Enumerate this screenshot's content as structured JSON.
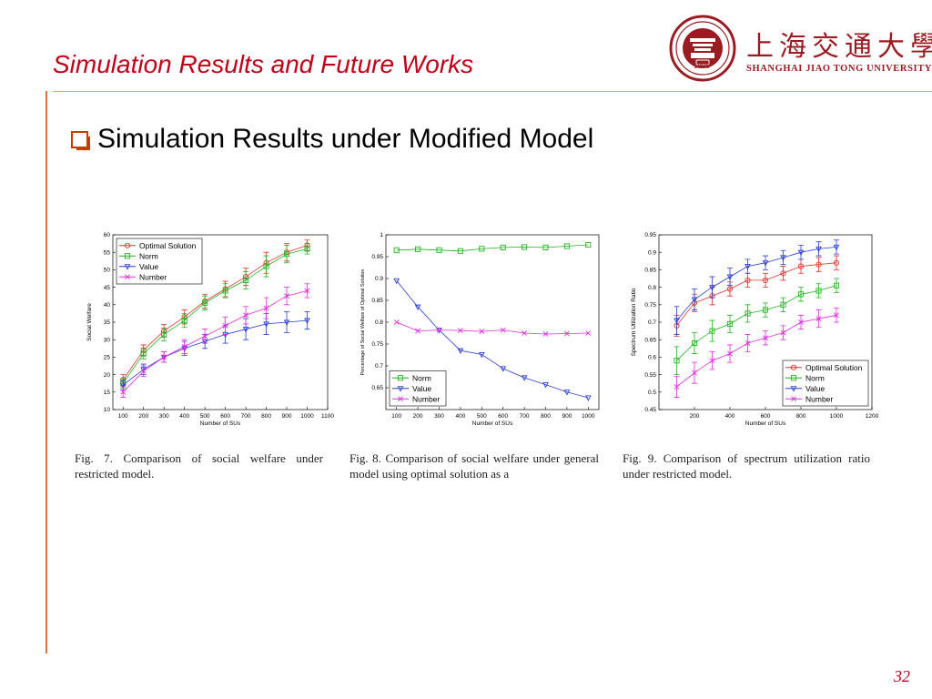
{
  "slide": {
    "title": "Simulation Results and Future Works",
    "bullet": "Simulation Results under Modified Model",
    "page_number": "32"
  },
  "logo": {
    "chinese": "上海交通大學",
    "english": "Shanghai Jiao Tong University",
    "year": "1896"
  },
  "captions": {
    "fig7": "Fig. 7.    Comparison of social welfare under restricted model.",
    "fig8": "Fig. 8.    Comparison of social welfare under general model using optimal solution as a",
    "fig9": "Fig. 9.    Comparison of spectrum utilization ratio under restricted model."
  },
  "colors": {
    "title": "#c0001a",
    "red": "#e0302a",
    "green": "#1fb51f",
    "blue": "#2a3fd6",
    "magenta": "#e02ce0"
  },
  "chart_data": [
    {
      "id": "fig7",
      "type": "line",
      "xlabel": "Number of SUs",
      "ylabel": "Social Welfare",
      "xlim": [
        50,
        1100
      ],
      "ylim": [
        10,
        60
      ],
      "xticks": [
        100,
        200,
        300,
        400,
        500,
        600,
        700,
        800,
        900,
        1000,
        1100
      ],
      "yticks": [
        10,
        15,
        20,
        25,
        30,
        35,
        40,
        45,
        50,
        55,
        60
      ],
      "legend": "top-left",
      "x": [
        100,
        200,
        300,
        400,
        500,
        600,
        700,
        800,
        900,
        1000
      ],
      "series": [
        {
          "name": "Optimal Solution",
          "color": "#e0302a",
          "marker": "circle",
          "values": [
            18.5,
            27,
            32.5,
            36.5,
            41,
            44.5,
            48,
            52,
            55,
            57
          ],
          "err": [
            1.5,
            1.5,
            1.8,
            2,
            2,
            2.2,
            2.5,
            3,
            2.5,
            1.5
          ]
        },
        {
          "name": "Norm",
          "color": "#1fb51f",
          "marker": "square",
          "values": [
            17.5,
            26,
            31.5,
            35.5,
            40.5,
            44,
            47,
            51,
            54.5,
            56
          ],
          "err": [
            1.5,
            1.5,
            1.8,
            2,
            2,
            2,
            2.5,
            3,
            2.5,
            1.5
          ]
        },
        {
          "name": "Value",
          "color": "#2a3fd6",
          "marker": "triangle-down",
          "values": [
            17,
            21.5,
            25,
            27.5,
            29.5,
            31.5,
            33,
            34.5,
            35,
            35.5
          ],
          "err": [
            1.5,
            1.5,
            1.5,
            2,
            2,
            2.5,
            3,
            3,
            3,
            2.5
          ]
        },
        {
          "name": "Number",
          "color": "#e02ce0",
          "marker": "x",
          "values": [
            15,
            21,
            25,
            28,
            31,
            34,
            37,
            39,
            42.5,
            44
          ],
          "err": [
            1.5,
            1.5,
            1.5,
            2,
            2,
            2.5,
            2.5,
            3,
            2.5,
            2
          ]
        }
      ]
    },
    {
      "id": "fig8",
      "type": "line",
      "xlabel": "Number of SUs",
      "ylabel": "Percentage of Social Welfare of Optimal Solution",
      "xlim": [
        50,
        1050
      ],
      "ylim": [
        0.6,
        1.0
      ],
      "xticks": [
        100,
        200,
        300,
        400,
        500,
        600,
        700,
        800,
        900,
        1000
      ],
      "yticks": [
        0.65,
        0.7,
        0.75,
        0.8,
        0.85,
        0.9,
        0.95,
        1
      ],
      "legend": "bottom-left",
      "x": [
        100,
        200,
        300,
        400,
        500,
        600,
        700,
        800,
        900,
        1000
      ],
      "series": [
        {
          "name": "Norm",
          "color": "#1fb51f",
          "marker": "square",
          "values": [
            0.965,
            0.967,
            0.965,
            0.963,
            0.968,
            0.971,
            0.972,
            0.971,
            0.974,
            0.977
          ]
        },
        {
          "name": "Value",
          "color": "#2a3fd6",
          "marker": "triangle-down",
          "values": [
            0.895,
            0.835,
            0.782,
            0.735,
            0.726,
            0.694,
            0.673,
            0.657,
            0.64,
            0.627
          ]
        },
        {
          "name": "Number",
          "color": "#e02ce0",
          "marker": "x",
          "values": [
            0.8,
            0.78,
            0.782,
            0.781,
            0.779,
            0.782,
            0.775,
            0.773,
            0.774,
            0.775
          ]
        }
      ]
    },
    {
      "id": "fig9",
      "type": "line",
      "xlabel": "Number of SUs",
      "ylabel": "Spectrum Utilization Ratio",
      "xlim": [
        0,
        1200
      ],
      "ylim": [
        0.45,
        0.95
      ],
      "xticks": [
        200,
        400,
        600,
        800,
        1000,
        1200
      ],
      "yticks": [
        0.45,
        0.5,
        0.55,
        0.6,
        0.65,
        0.7,
        0.75,
        0.8,
        0.85,
        0.9,
        0.95
      ],
      "legend": "bottom-right",
      "x": [
        100,
        200,
        300,
        400,
        500,
        600,
        700,
        800,
        900,
        1000
      ],
      "series": [
        {
          "name": "Optimal Solution",
          "color": "#e0302a",
          "marker": "circle",
          "values": [
            0.69,
            0.755,
            0.775,
            0.795,
            0.82,
            0.82,
            0.84,
            0.86,
            0.865,
            0.87
          ],
          "err": [
            0.03,
            0.025,
            0.025,
            0.02,
            0.02,
            0.02,
            0.02,
            0.02,
            0.02,
            0.02
          ]
        },
        {
          "name": "Norm",
          "color": "#1fb51f",
          "marker": "square",
          "values": [
            0.59,
            0.64,
            0.675,
            0.695,
            0.725,
            0.735,
            0.75,
            0.78,
            0.79,
            0.805
          ],
          "err": [
            0.04,
            0.03,
            0.03,
            0.025,
            0.025,
            0.02,
            0.02,
            0.02,
            0.02,
            0.02
          ]
        },
        {
          "name": "Value",
          "color": "#2a3fd6",
          "marker": "triangle-down",
          "values": [
            0.705,
            0.765,
            0.8,
            0.83,
            0.86,
            0.87,
            0.885,
            0.9,
            0.91,
            0.915
          ],
          "err": [
            0.04,
            0.03,
            0.03,
            0.025,
            0.02,
            0.02,
            0.02,
            0.02,
            0.02,
            0.02
          ]
        },
        {
          "name": "Number",
          "color": "#e02ce0",
          "marker": "x",
          "values": [
            0.515,
            0.555,
            0.59,
            0.61,
            0.64,
            0.655,
            0.67,
            0.7,
            0.71,
            0.72
          ],
          "err": [
            0.03,
            0.03,
            0.025,
            0.025,
            0.025,
            0.02,
            0.02,
            0.02,
            0.025,
            0.02
          ]
        }
      ]
    }
  ]
}
